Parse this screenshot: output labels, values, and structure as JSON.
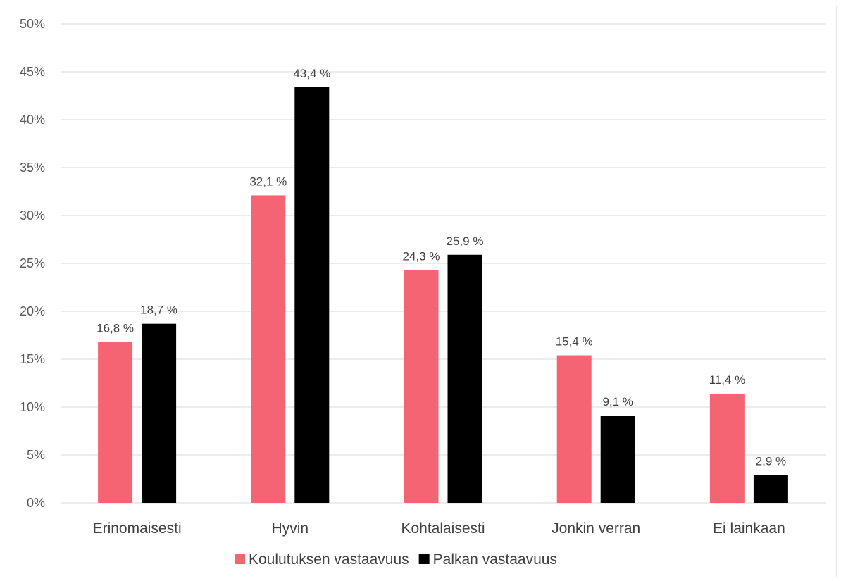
{
  "chart_data": {
    "type": "bar",
    "categories": [
      "Erinomaisesti",
      "Hyvin",
      "Kohtalaisesti",
      "Jonkin verran",
      "Ei lainkaan"
    ],
    "series": [
      {
        "name": "Koulutuksen vastaavuus",
        "color": "#f56473",
        "values": [
          16.8,
          32.1,
          24.3,
          15.4,
          11.4
        ],
        "labels": [
          "16,8 %",
          "32,1 %",
          "24,3 %",
          "15,4 %",
          "11,4 %"
        ]
      },
      {
        "name": "Palkan vastaavuus",
        "color": "#000000",
        "values": [
          18.7,
          43.4,
          25.9,
          9.1,
          2.9
        ],
        "labels": [
          "18,7 %",
          "43,4 %",
          "25,9 %",
          "9,1 %",
          "2,9 %"
        ]
      }
    ],
    "yticks": [
      "0%",
      "5%",
      "10%",
      "15%",
      "20%",
      "25%",
      "30%",
      "35%",
      "40%",
      "45%",
      "50%"
    ],
    "ylim": [
      0,
      50
    ],
    "grid": true,
    "legend": "bottom"
  }
}
